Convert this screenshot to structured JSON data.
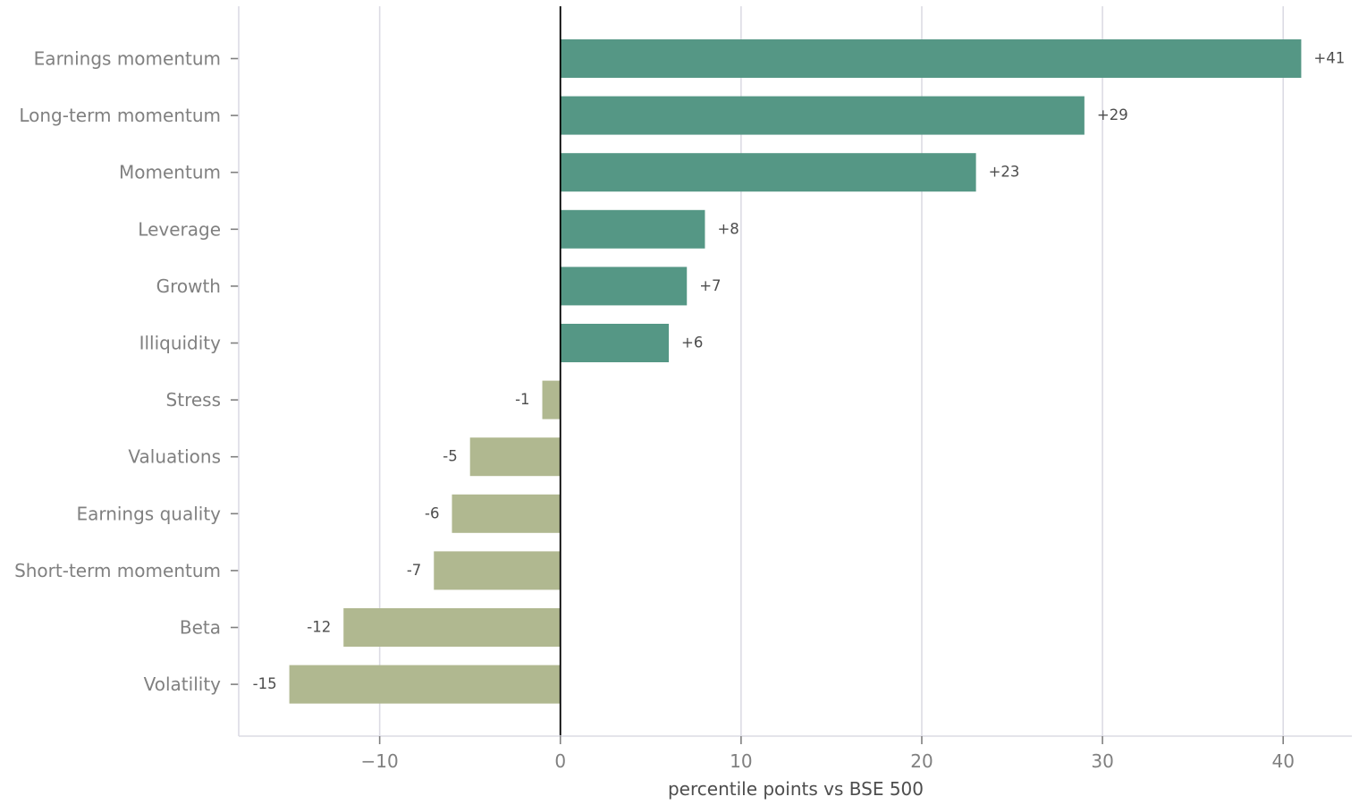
{
  "chart_data": {
    "type": "bar",
    "orientation": "horizontal",
    "title": "",
    "xlabel": "percentile points vs BSE 500",
    "ylabel": "",
    "categories": [
      "Earnings momentum",
      "Long-term momentum",
      "Momentum",
      "Leverage",
      "Growth",
      "Illiquidity",
      "Stress",
      "Valuations",
      "Earnings quality",
      "Short-term momentum",
      "Beta",
      "Volatility"
    ],
    "values": [
      41,
      29,
      23,
      8,
      7,
      6,
      -1,
      -5,
      -6,
      -7,
      -12,
      -15
    ],
    "value_labels": [
      "+41",
      "+29",
      "+23",
      "+8",
      "+7",
      "+6",
      "-1",
      "-5",
      "-6",
      "-7",
      "-12",
      "-15"
    ],
    "xlim": [
      -17.8,
      43.8
    ],
    "xticks": [
      -10,
      0,
      10,
      20,
      30,
      40
    ],
    "xtick_labels": [
      "−10",
      "0",
      "10",
      "20",
      "30",
      "40"
    ],
    "grid": "vertical",
    "legend": "none",
    "colors": {
      "positive": "#559785",
      "negative": "#b0b890",
      "zero_line": "#000000",
      "grid": "#dcdbe4",
      "spine": "#dcdbe4"
    }
  }
}
